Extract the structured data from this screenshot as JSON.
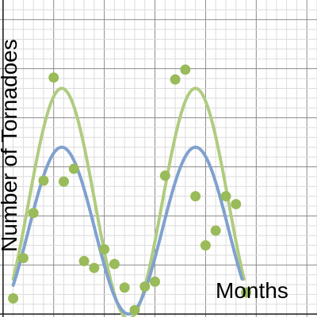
{
  "chart_data": {
    "type": "scatter",
    "xlabel": "Months",
    "ylabel": "Number of Tornadoes",
    "xlim": [
      -0.15,
      15.5
    ],
    "ylim": [
      -0.03,
      3.2
    ],
    "grid": true,
    "points": [
      {
        "x": 0.5,
        "y": 0.16
      },
      {
        "x": 1.0,
        "y": 0.57
      },
      {
        "x": 1.5,
        "y": 1.03
      },
      {
        "x": 2.0,
        "y": 1.36
      },
      {
        "x": 2.5,
        "y": 2.41
      },
      {
        "x": 3.0,
        "y": 1.35
      },
      {
        "x": 3.5,
        "y": 1.48
      },
      {
        "x": 4.0,
        "y": 0.54
      },
      {
        "x": 4.5,
        "y": 0.47
      },
      {
        "x": 5.0,
        "y": 0.66
      },
      {
        "x": 5.5,
        "y": 0.51
      },
      {
        "x": 6.0,
        "y": 0.27
      },
      {
        "x": 6.5,
        "y": 0.04
      },
      {
        "x": 7.0,
        "y": 0.28
      },
      {
        "x": 7.5,
        "y": 0.33
      },
      {
        "x": 8.0,
        "y": 1.41
      },
      {
        "x": 8.5,
        "y": 2.39
      },
      {
        "x": 9.0,
        "y": 2.49
      },
      {
        "x": 9.5,
        "y": 1.2
      },
      {
        "x": 10.0,
        "y": 0.7
      },
      {
        "x": 10.5,
        "y": 0.85
      },
      {
        "x": 11.0,
        "y": 1.2
      },
      {
        "x": 11.5,
        "y": 1.12
      },
      {
        "x": 12.0,
        "y": 0.22
      }
    ],
    "curves": [
      {
        "color": "#b0cc80",
        "amplitude": 1.175,
        "period": 6.6,
        "phase_x": 2.9,
        "midline": 1.125,
        "x_range": [
          0.5,
          11.9
        ]
      },
      {
        "color": "#7fa1cf",
        "amplitude": 0.85,
        "period": 6.6,
        "phase_x": 2.9,
        "midline": 0.85,
        "x_range": [
          0.5,
          11.8
        ]
      }
    ],
    "point_color": "#99bb5a"
  }
}
